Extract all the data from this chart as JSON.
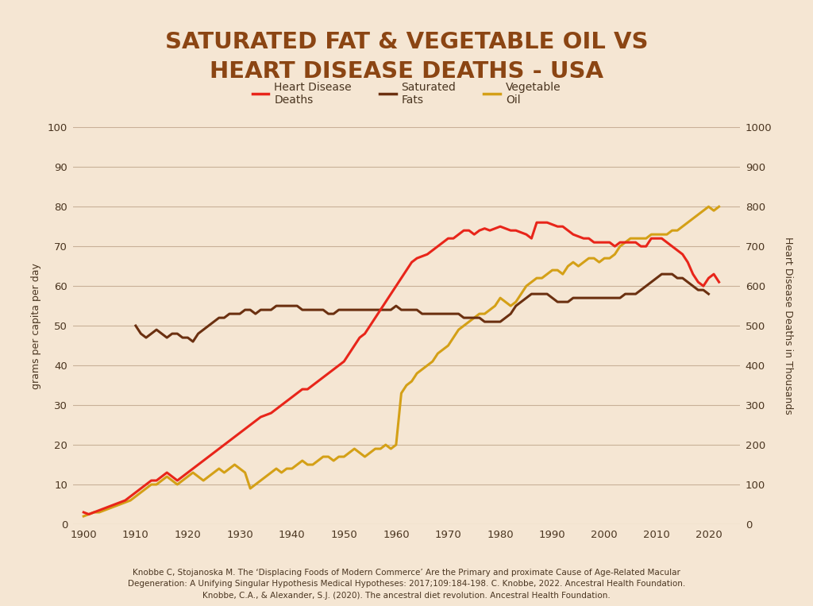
{
  "title_line1": "SATURATED FAT & VEGETABLE OIL VS",
  "title_line2": "HEART DISEASE DEATHS - USA",
  "title_color": "#8B4513",
  "bg_title": "#C8B89A",
  "bg_plot": "#F5E6D3",
  "grid_color": "#C8B098",
  "left_ylabel": "grams per capita per day",
  "right_ylabel": "Heart Disease Deaths in Thousands",
  "ylim_left": [
    0,
    100
  ],
  "ylim_right": [
    0,
    1000
  ],
  "yticks_left": [
    0,
    10,
    20,
    30,
    40,
    50,
    60,
    70,
    80,
    90,
    100
  ],
  "yticks_right": [
    0,
    100,
    200,
    300,
    400,
    500,
    600,
    700,
    800,
    900,
    1000
  ],
  "xticks": [
    1900,
    1910,
    1920,
    1930,
    1940,
    1950,
    1960,
    1970,
    1980,
    1990,
    2000,
    2010,
    2020
  ],
  "xlim": [
    1898,
    2026
  ],
  "heart_disease_color": "#E8251A",
  "saturated_fat_color": "#6B3010",
  "vegetable_oil_color": "#D4A017",
  "line_width": 2.2,
  "citation_line1": "Knobbe C, Stojanoska M. The ‘Displacing Foods of Modern Commerce’ Are the Primary and proximate Cause of Age-Related Macular",
  "citation_line2": "Degeneration: A Unifying Singular Hypothesis Medical Hypotheses: 2017;109:184-198. C. Knobbe, 2022. Ancestral Health Foundation.",
  "citation_line3": "Knobbe, C.A., & Alexander, S.J. (2020). The ancestral diet revolution. Ancestral Health Foundation.",
  "heart_disease_x": [
    1900,
    1901,
    1902,
    1903,
    1904,
    1905,
    1906,
    1907,
    1908,
    1909,
    1910,
    1911,
    1912,
    1913,
    1914,
    1915,
    1916,
    1917,
    1918,
    1919,
    1920,
    1921,
    1922,
    1923,
    1924,
    1925,
    1926,
    1927,
    1928,
    1929,
    1930,
    1931,
    1932,
    1933,
    1934,
    1935,
    1936,
    1937,
    1938,
    1939,
    1940,
    1941,
    1942,
    1943,
    1944,
    1945,
    1946,
    1947,
    1948,
    1949,
    1950,
    1951,
    1952,
    1953,
    1954,
    1955,
    1956,
    1957,
    1958,
    1959,
    1960,
    1961,
    1962,
    1963,
    1964,
    1965,
    1966,
    1967,
    1968,
    1969,
    1970,
    1971,
    1972,
    1973,
    1974,
    1975,
    1976,
    1977,
    1978,
    1979,
    1980,
    1981,
    1982,
    1983,
    1984,
    1985,
    1986,
    1987,
    1988,
    1989,
    1990,
    1991,
    1992,
    1993,
    1994,
    1995,
    1996,
    1997,
    1998,
    1999,
    2000,
    2001,
    2002,
    2003,
    2004,
    2005,
    2006,
    2007,
    2008,
    2009,
    2010,
    2011,
    2012,
    2013,
    2014,
    2015,
    2016,
    2017,
    2018,
    2019,
    2020,
    2021,
    2022
  ],
  "heart_disease_y": [
    3,
    2.5,
    3,
    3.5,
    4,
    4.5,
    5,
    5.5,
    6,
    7,
    8,
    9,
    10,
    11,
    11,
    12,
    13,
    12,
    11,
    12,
    13,
    14,
    15,
    16,
    17,
    18,
    19,
    20,
    21,
    22,
    23,
    24,
    25,
    26,
    27,
    27.5,
    28,
    29,
    30,
    31,
    32,
    33,
    34,
    34,
    35,
    36,
    37,
    38,
    39,
    40,
    41,
    43,
    45,
    47,
    48,
    50,
    52,
    54,
    56,
    58,
    60,
    62,
    64,
    66,
    67,
    67.5,
    68,
    69,
    70,
    71,
    72,
    72,
    73,
    74,
    74,
    73,
    74,
    74.5,
    74,
    74.5,
    75,
    74.5,
    74,
    74,
    73.5,
    73,
    72,
    76,
    76,
    76,
    75.5,
    75,
    75,
    74,
    73,
    72.5,
    72,
    72,
    71,
    71,
    71,
    71,
    70,
    71,
    71,
    71,
    71,
    70,
    70,
    72,
    72,
    72,
    71,
    70,
    69,
    68,
    66,
    63,
    61,
    60,
    62,
    63,
    61
  ],
  "saturated_fat_x": [
    1910,
    1911,
    1912,
    1913,
    1914,
    1915,
    1916,
    1917,
    1918,
    1919,
    1920,
    1921,
    1922,
    1923,
    1924,
    1925,
    1926,
    1927,
    1928,
    1929,
    1930,
    1931,
    1932,
    1933,
    1934,
    1935,
    1936,
    1937,
    1938,
    1939,
    1940,
    1941,
    1942,
    1943,
    1944,
    1945,
    1946,
    1947,
    1948,
    1949,
    1950,
    1951,
    1952,
    1953,
    1954,
    1955,
    1956,
    1957,
    1958,
    1959,
    1960,
    1961,
    1962,
    1963,
    1964,
    1965,
    1966,
    1967,
    1968,
    1969,
    1970,
    1971,
    1972,
    1973,
    1974,
    1975,
    1976,
    1977,
    1978,
    1979,
    1980,
    1981,
    1982,
    1983,
    1984,
    1985,
    1986,
    1987,
    1988,
    1989,
    1990,
    1991,
    1992,
    1993,
    1994,
    1995,
    1996,
    1997,
    1998,
    1999,
    2000,
    2001,
    2002,
    2003,
    2004,
    2005,
    2006,
    2007,
    2008,
    2009,
    2010,
    2011,
    2012,
    2013,
    2014,
    2015,
    2016,
    2017,
    2018,
    2019,
    2020
  ],
  "saturated_fat_y": [
    50,
    48,
    47,
    48,
    49,
    48,
    47,
    48,
    48,
    47,
    47,
    46,
    48,
    49,
    50,
    51,
    52,
    52,
    53,
    53,
    53,
    54,
    54,
    53,
    54,
    54,
    54,
    55,
    55,
    55,
    55,
    55,
    54,
    54,
    54,
    54,
    54,
    53,
    53,
    54,
    54,
    54,
    54,
    54,
    54,
    54,
    54,
    54,
    54,
    54,
    55,
    54,
    54,
    54,
    54,
    53,
    53,
    53,
    53,
    53,
    53,
    53,
    53,
    52,
    52,
    52,
    52,
    51,
    51,
    51,
    51,
    52,
    53,
    55,
    56,
    57,
    58,
    58,
    58,
    58,
    57,
    56,
    56,
    56,
    57,
    57,
    57,
    57,
    57,
    57,
    57,
    57,
    57,
    57,
    58,
    58,
    58,
    59,
    60,
    61,
    62,
    63,
    63,
    63,
    62,
    62,
    61,
    60,
    59,
    59,
    58
  ],
  "vegetable_oil_x": [
    1900,
    1901,
    1902,
    1903,
    1904,
    1905,
    1906,
    1907,
    1908,
    1909,
    1910,
    1911,
    1912,
    1913,
    1914,
    1915,
    1916,
    1917,
    1918,
    1919,
    1920,
    1921,
    1922,
    1923,
    1924,
    1925,
    1926,
    1927,
    1928,
    1929,
    1930,
    1931,
    1932,
    1933,
    1934,
    1935,
    1936,
    1937,
    1938,
    1939,
    1940,
    1941,
    1942,
    1943,
    1944,
    1945,
    1946,
    1947,
    1948,
    1949,
    1950,
    1951,
    1952,
    1953,
    1954,
    1955,
    1956,
    1957,
    1958,
    1959,
    1960,
    1961,
    1962,
    1963,
    1964,
    1965,
    1966,
    1967,
    1968,
    1969,
    1970,
    1971,
    1972,
    1973,
    1974,
    1975,
    1976,
    1977,
    1978,
    1979,
    1980,
    1981,
    1982,
    1983,
    1984,
    1985,
    1986,
    1987,
    1988,
    1989,
    1990,
    1991,
    1992,
    1993,
    1994,
    1995,
    1996,
    1997,
    1998,
    1999,
    2000,
    2001,
    2002,
    2003,
    2004,
    2005,
    2006,
    2007,
    2008,
    2009,
    2010,
    2011,
    2012,
    2013,
    2014,
    2015,
    2016,
    2017,
    2018,
    2019,
    2020,
    2021,
    2022
  ],
  "vegetable_oil_y": [
    2,
    2.5,
    3,
    3,
    3.5,
    4,
    4.5,
    5,
    5.5,
    6,
    7,
    8,
    9,
    10,
    10,
    11,
    12,
    11,
    10,
    11,
    12,
    13,
    12,
    11,
    12,
    13,
    14,
    13,
    14,
    15,
    14,
    13,
    9,
    10,
    11,
    12,
    13,
    14,
    13,
    14,
    14,
    15,
    16,
    15,
    15,
    16,
    17,
    17,
    16,
    17,
    17,
    18,
    19,
    18,
    17,
    18,
    19,
    19,
    20,
    19,
    20,
    33,
    35,
    36,
    38,
    39,
    40,
    41,
    43,
    44,
    45,
    47,
    49,
    50,
    51,
    52,
    53,
    53,
    54,
    55,
    57,
    56,
    55,
    56,
    58,
    60,
    61,
    62,
    62,
    63,
    64,
    64,
    63,
    65,
    66,
    65,
    66,
    67,
    67,
    66,
    67,
    67,
    68,
    70,
    71,
    72,
    72,
    72,
    72,
    73,
    73,
    73,
    73,
    74,
    74,
    75,
    76,
    77,
    78,
    79,
    80,
    79,
    80
  ]
}
